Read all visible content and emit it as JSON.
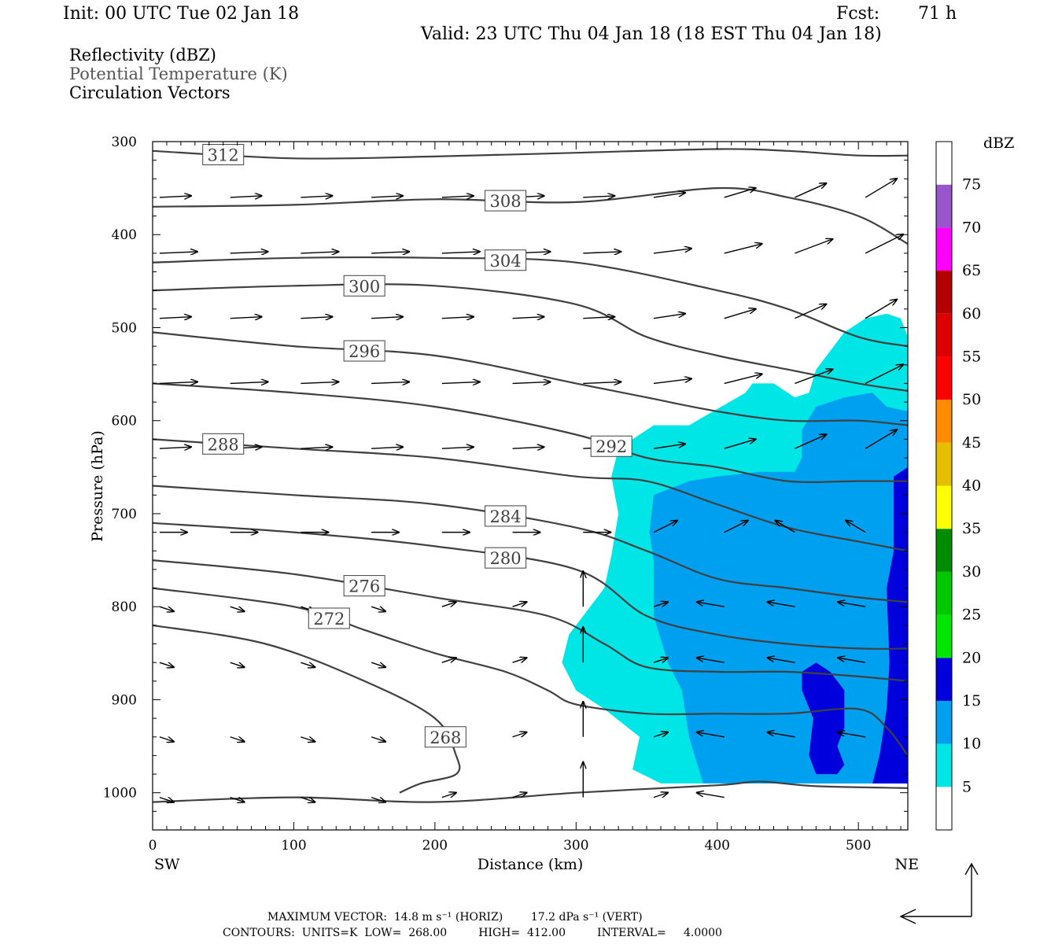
{
  "header": {
    "init": "Init: 00 UTC Tue 02 Jan 18",
    "fcst_label": "Fcst:",
    "fcst_value": "71 h",
    "valid": "Valid: 23 UTC Thu 04 Jan 18 (18 EST Thu 04 Jan 18)"
  },
  "legend": {
    "line1": "Reflectivity (dBZ)",
    "line2": "Potential Temperature (K)",
    "line3": "Circulation Vectors"
  },
  "chart_data": {
    "type": "cross-section",
    "xlabel": "Distance (km)",
    "ylabel": "Pressure (hPa)",
    "x_end_labels": {
      "left": "SW",
      "right": "NE"
    },
    "xlim": [
      0,
      535
    ],
    "ylim": [
      1040,
      300
    ],
    "x_ticks": [
      0,
      100,
      200,
      300,
      400,
      500
    ],
    "y_ticks": [
      300,
      400,
      500,
      600,
      700,
      800,
      900,
      1000
    ],
    "colorbar": {
      "unit": "dBZ",
      "levels": [
        5,
        10,
        15,
        20,
        25,
        30,
        35,
        40,
        45,
        50,
        55,
        60,
        65,
        70,
        75
      ],
      "colors": [
        "#ffffff",
        "#00e6e6",
        "#00a0f0",
        "#0000dc",
        "#00e600",
        "#00c800",
        "#008c00",
        "#ffff00",
        "#e6be00",
        "#ff8c00",
        "#ff0000",
        "#dc0000",
        "#b40000",
        "#ff00ff",
        "#9955cc",
        "#ffffff"
      ]
    },
    "reflectivity_regions": [
      {
        "dbz": 5,
        "outline": [
          [
            330,
            630
          ],
          [
            355,
            605
          ],
          [
            380,
            605
          ],
          [
            420,
            570
          ],
          [
            425,
            560
          ],
          [
            440,
            560
          ],
          [
            455,
            575
          ],
          [
            465,
            570
          ],
          [
            470,
            545
          ],
          [
            490,
            505
          ],
          [
            505,
            490
          ],
          [
            520,
            485
          ],
          [
            530,
            490
          ],
          [
            535,
            510
          ],
          [
            535,
            990
          ],
          [
            360,
            990
          ],
          [
            340,
            975
          ],
          [
            345,
            940
          ],
          [
            320,
            910
          ],
          [
            300,
            890
          ],
          [
            290,
            860
          ],
          [
            295,
            830
          ],
          [
            305,
            810
          ],
          [
            320,
            780
          ],
          [
            325,
            745
          ],
          [
            330,
            700
          ],
          [
            325,
            660
          ]
        ]
      },
      {
        "dbz": 10,
        "outline": [
          [
            355,
            680
          ],
          [
            380,
            665
          ],
          [
            400,
            660
          ],
          [
            430,
            655
          ],
          [
            455,
            655
          ],
          [
            460,
            640
          ],
          [
            460,
            610
          ],
          [
            470,
            585
          ],
          [
            490,
            575
          ],
          [
            510,
            570
          ],
          [
            520,
            585
          ],
          [
            535,
            590
          ],
          [
            535,
            990
          ],
          [
            390,
            990
          ],
          [
            380,
            940
          ],
          [
            375,
            890
          ],
          [
            365,
            860
          ],
          [
            355,
            810
          ],
          [
            355,
            750
          ],
          [
            352,
            720
          ]
        ]
      },
      {
        "dbz": 15,
        "outline": [
          [
            460,
            870
          ],
          [
            470,
            860
          ],
          [
            480,
            870
          ],
          [
            490,
            890
          ],
          [
            490,
            930
          ],
          [
            485,
            950
          ],
          [
            490,
            970
          ],
          [
            485,
            980
          ],
          [
            470,
            980
          ],
          [
            465,
            960
          ],
          [
            468,
            920
          ],
          [
            460,
            890
          ]
        ]
      },
      {
        "dbz": 15,
        "outline": [
          [
            525,
            660
          ],
          [
            535,
            650
          ],
          [
            535,
            990
          ],
          [
            510,
            990
          ],
          [
            515,
            960
          ],
          [
            520,
            910
          ],
          [
            522,
            860
          ],
          [
            520,
            780
          ],
          [
            525,
            740
          ]
        ]
      }
    ],
    "theta_contours": [
      {
        "label": "312",
        "points": [
          [
            0,
            310
          ],
          [
            100,
            318
          ],
          [
            200,
            316
          ],
          [
            300,
            312
          ],
          [
            400,
            308
          ],
          [
            450,
            310
          ],
          [
            500,
            315
          ],
          [
            535,
            315
          ]
        ]
      },
      {
        "label": "308",
        "points": [
          [
            0,
            370
          ],
          [
            100,
            368
          ],
          [
            200,
            362
          ],
          [
            300,
            365
          ],
          [
            400,
            350
          ],
          [
            450,
            360
          ],
          [
            500,
            380
          ],
          [
            535,
            410
          ]
        ]
      },
      {
        "label": "304",
        "points": [
          [
            0,
            430
          ],
          [
            100,
            425
          ],
          [
            200,
            425
          ],
          [
            300,
            430
          ],
          [
            400,
            460
          ],
          [
            450,
            480
          ],
          [
            500,
            510
          ],
          [
            535,
            520
          ]
        ]
      },
      {
        "label": "300",
        "points": [
          [
            0,
            460
          ],
          [
            100,
            455
          ],
          [
            200,
            455
          ],
          [
            300,
            475
          ],
          [
            350,
            510
          ],
          [
            400,
            530
          ],
          [
            450,
            545
          ],
          [
            500,
            560
          ],
          [
            535,
            568
          ]
        ]
      },
      {
        "label": "296",
        "points": [
          [
            0,
            505
          ],
          [
            100,
            520
          ],
          [
            200,
            530
          ],
          [
            300,
            560
          ],
          [
            350,
            575
          ],
          [
            400,
            590
          ],
          [
            450,
            600
          ],
          [
            500,
            600
          ],
          [
            535,
            605
          ]
        ]
      },
      {
        "label": "292",
        "points": [
          [
            0,
            560
          ],
          [
            100,
            570
          ],
          [
            200,
            585
          ],
          [
            300,
            615
          ],
          [
            350,
            640
          ],
          [
            400,
            650
          ],
          [
            450,
            665
          ],
          [
            500,
            665
          ],
          [
            535,
            665
          ]
        ]
      },
      {
        "label": "288",
        "points": [
          [
            0,
            620
          ],
          [
            100,
            630
          ],
          [
            200,
            640
          ],
          [
            300,
            660
          ],
          [
            350,
            665
          ],
          [
            400,
            690
          ],
          [
            450,
            715
          ],
          [
            500,
            730
          ],
          [
            535,
            740
          ]
        ]
      },
      {
        "label": "284",
        "points": [
          [
            0,
            670
          ],
          [
            100,
            680
          ],
          [
            200,
            690
          ],
          [
            300,
            715
          ],
          [
            350,
            740
          ],
          [
            400,
            770
          ],
          [
            450,
            780
          ],
          [
            500,
            790
          ],
          [
            535,
            795
          ]
        ]
      },
      {
        "label": "280",
        "points": [
          [
            0,
            710
          ],
          [
            100,
            720
          ],
          [
            200,
            735
          ],
          [
            300,
            760
          ],
          [
            350,
            810
          ],
          [
            400,
            830
          ],
          [
            450,
            840
          ],
          [
            500,
            845
          ],
          [
            535,
            845
          ]
        ]
      },
      {
        "label": "276",
        "points": [
          [
            0,
            750
          ],
          [
            100,
            765
          ],
          [
            200,
            790
          ],
          [
            280,
            810
          ],
          [
            320,
            840
          ],
          [
            350,
            865
          ],
          [
            400,
            870
          ],
          [
            450,
            870
          ],
          [
            500,
            875
          ],
          [
            535,
            880
          ]
        ]
      },
      {
        "label": "272",
        "points": [
          [
            0,
            780
          ],
          [
            100,
            800
          ],
          [
            150,
            825
          ],
          [
            200,
            850
          ],
          [
            250,
            870
          ],
          [
            280,
            890
          ],
          [
            300,
            905
          ],
          [
            350,
            915
          ],
          [
            400,
            915
          ],
          [
            450,
            915
          ],
          [
            500,
            910
          ],
          [
            520,
            930
          ],
          [
            535,
            960
          ]
        ]
      },
      {
        "label": "268",
        "points": [
          [
            0,
            820
          ],
          [
            80,
            840
          ],
          [
            150,
            880
          ],
          [
            200,
            920
          ],
          [
            215,
            960
          ],
          [
            215,
            980
          ],
          [
            190,
            990
          ],
          [
            175,
            1000
          ]
        ]
      },
      {
        "label": "",
        "points": [
          [
            0,
            1010
          ],
          [
            100,
            1005
          ],
          [
            200,
            1010
          ],
          [
            300,
            1000
          ],
          [
            400,
            992
          ],
          [
            430,
            988
          ],
          [
            470,
            993
          ],
          [
            535,
            995
          ]
        ]
      }
    ],
    "vectors_note": "circulation vectors (horizontal, vertical components)",
    "footer": {
      "max_vector": "MAXIMUM VECTOR:  14.8 m s⁻¹ (HORIZ)        17.2 dPa s⁻¹ (VERT)",
      "contours": "CONTOURS:  UNITS=K  LOW=  268.00         HIGH=  412.00         INTERVAL=     4.0000"
    }
  }
}
